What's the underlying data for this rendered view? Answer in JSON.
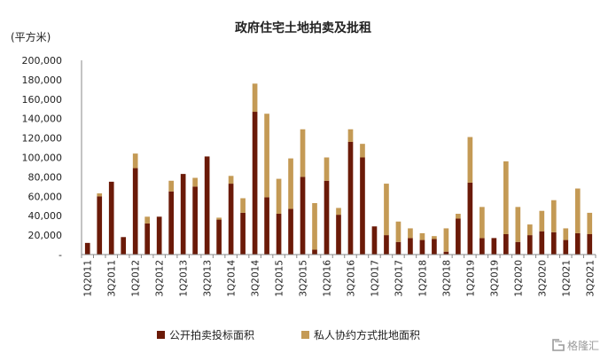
{
  "chart_data": {
    "type": "bar",
    "stacked": true,
    "title": "政府住宅土地拍卖及批租",
    "unit_label": "(平方米)",
    "ylim": [
      0,
      200000
    ],
    "yticks": [
      "200,000",
      "180,000",
      "160,000",
      "140,000",
      "120,000",
      "100,000",
      "80,000",
      "60,000",
      "40,000",
      "20,000",
      "-"
    ],
    "grid": false,
    "legend_position": "bottom",
    "categories": [
      "1Q2011",
      "2Q2011",
      "3Q2011",
      "4Q2011",
      "1Q2012",
      "2Q2012",
      "3Q2012",
      "4Q2012",
      "1Q2013",
      "2Q2013",
      "3Q2013",
      "4Q2013",
      "1Q2014",
      "2Q2014",
      "3Q2014",
      "4Q2014",
      "1Q2015",
      "2Q2015",
      "3Q2015",
      "4Q2015",
      "1Q2016",
      "2Q2016",
      "3Q2016",
      "4Q2016",
      "1Q2017",
      "2Q2017",
      "3Q2017",
      "4Q2017",
      "1Q2018",
      "2Q2018",
      "3Q2018",
      "4Q2018",
      "1Q2019",
      "2Q2019",
      "3Q2019",
      "4Q2019",
      "1Q2020",
      "2Q2020",
      "3Q2020",
      "4Q2020",
      "1Q2021",
      "2Q2021",
      "3Q2021"
    ],
    "tick_labels": [
      "1Q2011",
      "3Q2011",
      "1Q2012",
      "3Q2012",
      "1Q2013",
      "3Q2013",
      "1Q2014",
      "3Q2014",
      "1Q2015",
      "3Q2015",
      "1Q2016",
      "3Q2016",
      "1Q2017",
      "3Q2017",
      "1Q2018",
      "3Q2018",
      "1Q2019",
      "3Q2019",
      "1Q2020",
      "3Q2020",
      "1Q2021",
      "3Q2021"
    ],
    "series": [
      {
        "name": "公开拍卖投标面积",
        "color": "#6b1a08",
        "values": [
          12000,
          60000,
          75000,
          18000,
          89000,
          32000,
          39000,
          65000,
          83000,
          70000,
          101000,
          36000,
          73000,
          43000,
          147000,
          59000,
          42000,
          47000,
          80000,
          5000,
          76000,
          41000,
          116000,
          100000,
          29000,
          20000,
          13000,
          17000,
          15000,
          16000,
          3000,
          37000,
          74000,
          17000,
          17000,
          21000,
          13000,
          20000,
          24000,
          23000,
          15000,
          22000,
          21000
        ]
      },
      {
        "name": "私人协约方式批地面积",
        "color": "#c49a55",
        "values": [
          0,
          3000,
          0,
          0,
          15000,
          7000,
          0,
          11000,
          0,
          9000,
          0,
          2000,
          8000,
          15000,
          29000,
          86000,
          36000,
          52000,
          49000,
          48000,
          24000,
          7000,
          13000,
          14000,
          0,
          53000,
          21000,
          10000,
          7000,
          3000,
          24000,
          5000,
          47000,
          32000,
          0,
          75000,
          36000,
          11000,
          21000,
          33000,
          12000,
          46000,
          22000
        ]
      }
    ]
  },
  "watermark": {
    "icon": "gelonghui-logo-icon",
    "text": "格隆汇"
  }
}
